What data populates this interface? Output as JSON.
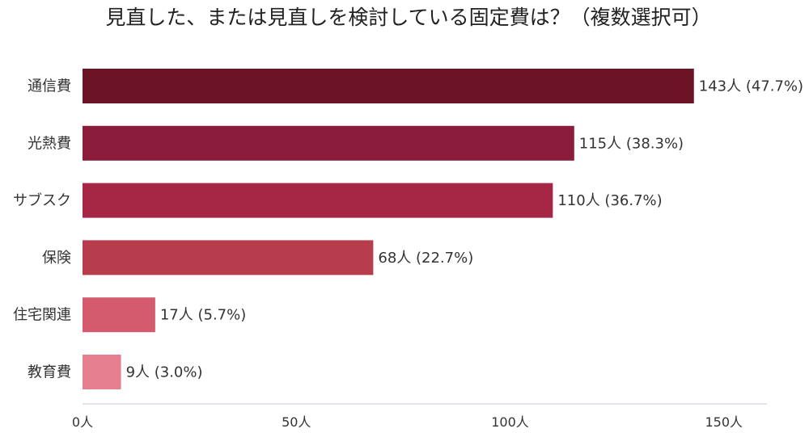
{
  "chart_data": {
    "type": "bar",
    "orientation": "horizontal",
    "title": "見直した、または見直しを検討している固定費は？（複数選択可）",
    "categories": [
      "通信費",
      "光熱費",
      "サブスク",
      "保険",
      "住宅関連",
      "教育費"
    ],
    "values": [
      143,
      115,
      110,
      68,
      17,
      9
    ],
    "percentages": [
      47.7,
      38.3,
      36.7,
      22.7,
      5.7,
      3.0
    ],
    "data_labels": [
      "143人 (47.7%)",
      "115人 (38.3%)",
      "110人 (36.7%)",
      "68人 (22.7%)",
      "17人 (5.7%)",
      "9人 (3.0%)"
    ],
    "bar_colors": [
      "#6b1428",
      "#8b1c3c",
      "#a52645",
      "#b73c4c",
      "#d45a6e",
      "#e57e8e"
    ],
    "x_ticks": [
      0,
      50,
      100,
      150
    ],
    "x_tick_labels": [
      "0人",
      "50人",
      "100人",
      "150人"
    ],
    "xlim": [
      0,
      160
    ],
    "xlabel": "",
    "ylabel": "",
    "grid": false,
    "legend": "none"
  }
}
